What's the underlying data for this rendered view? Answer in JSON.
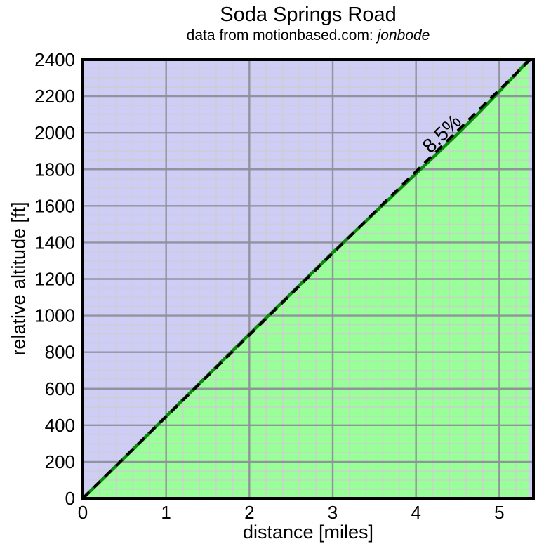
{
  "chart_data": {
    "type": "area",
    "title": "Soda Springs Road",
    "subtitle": "data from motionbased.com: jonbode",
    "subtitle_prefix": "data from motionbased.com: ",
    "subtitle_user": "jonbode",
    "xlabel": "distance [miles]",
    "ylabel": "relative altitude [ft]",
    "xlim": [
      0,
      5.41
    ],
    "ylim": [
      0,
      2400
    ],
    "x_major_ticks": [
      0,
      1,
      2,
      3,
      4,
      5
    ],
    "y_major_ticks": [
      0,
      200,
      400,
      600,
      800,
      1000,
      1200,
      1400,
      1600,
      1800,
      2000,
      2200,
      2400
    ],
    "x_minor_step": 0.2,
    "y_minor_step": 50,
    "grid": true,
    "legend": "none",
    "grade_label": "8.5%",
    "series": [
      {
        "name": "elevation-profile",
        "style": "solid",
        "fill_below": true,
        "points": [
          [
            0,
            0
          ],
          [
            0.25,
            111
          ],
          [
            0.5,
            223
          ],
          [
            0.75,
            335
          ],
          [
            1,
            449
          ],
          [
            1.25,
            561
          ],
          [
            1.5,
            673
          ],
          [
            1.75,
            786
          ],
          [
            2,
            898
          ],
          [
            2.25,
            1009
          ],
          [
            2.5,
            1121
          ],
          [
            2.75,
            1233
          ],
          [
            3,
            1344
          ],
          [
            3.25,
            1453
          ],
          [
            3.5,
            1561
          ],
          [
            3.75,
            1669
          ],
          [
            4,
            1777
          ],
          [
            4.25,
            1885
          ],
          [
            4.5,
            1995
          ],
          [
            4.75,
            2108
          ],
          [
            5,
            2226
          ],
          [
            5.2,
            2322
          ],
          [
            5.355,
            2400
          ]
        ]
      },
      {
        "name": "average-grade-8.5-percent",
        "style": "dashed",
        "fill_below": false,
        "points": [
          [
            0,
            0
          ],
          [
            5.37,
            2400
          ]
        ]
      }
    ],
    "colors": {
      "above_fill": "#cdcdf5",
      "below_fill": "#99ff99",
      "profile_line": "#0a8a0a",
      "grade_line": "#000000",
      "grid_minor": "#d0cdd0",
      "grid_major": "#8f8f99",
      "border": "#000000",
      "text": "#000000"
    }
  }
}
